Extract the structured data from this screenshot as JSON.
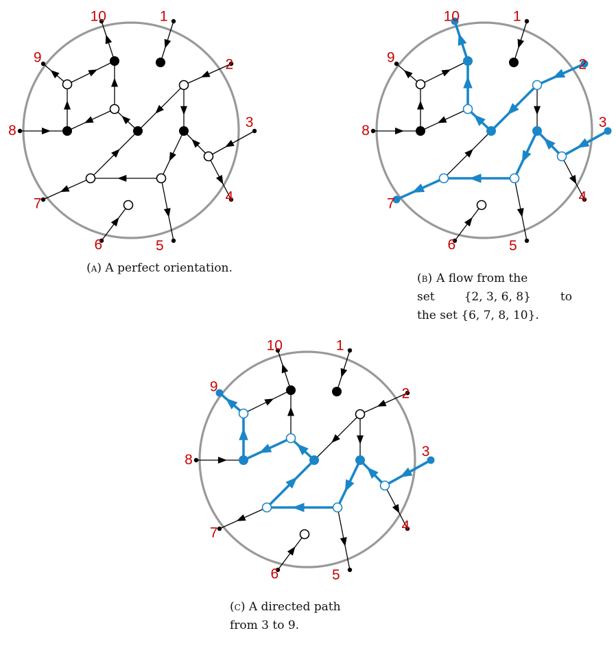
{
  "captions": {
    "a": {
      "tag": "(a)",
      "text": "A perfect orientation."
    },
    "b": {
      "tag": "(b)",
      "line1": "A flow from the",
      "line2a": "set",
      "line2b": "{2, 3, 6, 8}",
      "line2c": "to",
      "line3": "the set {6, 7, 8, 10}."
    },
    "c": {
      "tag": "(c)",
      "line1": "A directed path",
      "line2": "from 3 to 9."
    }
  },
  "colors": {
    "circle": "#999999",
    "edge": "#000000",
    "highlight": "#1a86c8",
    "label": "#cc0000"
  },
  "boundary_labels": [
    "1",
    "2",
    "3",
    "4",
    "5",
    "6",
    "7",
    "8",
    "9",
    "10"
  ],
  "graph": {
    "vertices": [
      {
        "id": "b1",
        "kind": "boundary"
      },
      {
        "id": "b2",
        "kind": "boundary"
      },
      {
        "id": "b3",
        "kind": "boundary"
      },
      {
        "id": "b4",
        "kind": "boundary"
      },
      {
        "id": "b5",
        "kind": "boundary"
      },
      {
        "id": "b6",
        "kind": "boundary"
      },
      {
        "id": "b7",
        "kind": "boundary"
      },
      {
        "id": "b8",
        "kind": "boundary"
      },
      {
        "id": "b9",
        "kind": "boundary"
      },
      {
        "id": "b10",
        "kind": "boundary"
      },
      {
        "id": "B1",
        "kind": "black"
      },
      {
        "id": "B2",
        "kind": "black"
      },
      {
        "id": "B3",
        "kind": "black"
      },
      {
        "id": "B4",
        "kind": "black"
      },
      {
        "id": "B5",
        "kind": "black"
      },
      {
        "id": "W1",
        "kind": "white"
      },
      {
        "id": "W2",
        "kind": "white"
      },
      {
        "id": "W3",
        "kind": "white"
      },
      {
        "id": "W4",
        "kind": "white"
      },
      {
        "id": "W5",
        "kind": "white"
      },
      {
        "id": "W6",
        "kind": "white"
      },
      {
        "id": "W7",
        "kind": "white"
      }
    ],
    "edges": [
      {
        "from": "b1",
        "to": "B1"
      },
      {
        "from": "B2",
        "to": "b10"
      },
      {
        "from": "W1",
        "to": "b9"
      },
      {
        "from": "W1",
        "to": "B2"
      },
      {
        "from": "B3",
        "to": "W1"
      },
      {
        "from": "b8",
        "to": "B3"
      },
      {
        "from": "W2",
        "to": "B3"
      },
      {
        "from": "W2",
        "to": "B2"
      },
      {
        "from": "B4",
        "to": "W2"
      },
      {
        "from": "W3",
        "to": "B4"
      },
      {
        "from": "b2",
        "to": "W3"
      },
      {
        "from": "W3",
        "to": "B5"
      },
      {
        "from": "W4",
        "to": "B5"
      },
      {
        "from": "b3",
        "to": "W4"
      },
      {
        "from": "W4",
        "to": "b4"
      },
      {
        "from": "B5",
        "to": "W6"
      },
      {
        "from": "W6",
        "to": "W5"
      },
      {
        "from": "W6",
        "to": "b5"
      },
      {
        "from": "W5",
        "to": "B4"
      },
      {
        "from": "W5",
        "to": "b7"
      },
      {
        "from": "b6",
        "to": "W7"
      }
    ],
    "panels": [
      {
        "id": "a",
        "highlight": []
      },
      {
        "id": "b",
        "highlight": [
          {
            "from": "B2",
            "to": "b10"
          },
          {
            "from": "W2",
            "to": "B2"
          },
          {
            "from": "B4",
            "to": "W2"
          },
          {
            "from": "W3",
            "to": "B4"
          },
          {
            "from": "b2",
            "to": "W3"
          },
          {
            "from": "b3",
            "to": "W4"
          },
          {
            "from": "W4",
            "to": "B5"
          },
          {
            "from": "B5",
            "to": "W6"
          },
          {
            "from": "W6",
            "to": "W5"
          },
          {
            "from": "W5",
            "to": "b7"
          }
        ]
      },
      {
        "id": "c",
        "highlight": [
          {
            "from": "b3",
            "to": "W4"
          },
          {
            "from": "W4",
            "to": "B5"
          },
          {
            "from": "B5",
            "to": "W6"
          },
          {
            "from": "W6",
            "to": "W5"
          },
          {
            "from": "W5",
            "to": "B4"
          },
          {
            "from": "B4",
            "to": "W2"
          },
          {
            "from": "W2",
            "to": "B3"
          },
          {
            "from": "B3",
            "to": "W1"
          },
          {
            "from": "W1",
            "to": "b9"
          }
        ]
      }
    ]
  }
}
